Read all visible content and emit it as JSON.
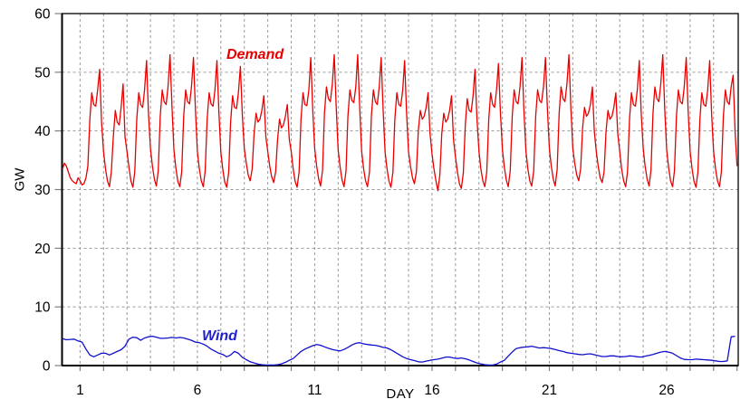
{
  "chart": {
    "y_axis_label": "GW",
    "x_axis_label": "DAY",
    "demand_label": "Demand",
    "wind_label": "Wind"
  },
  "colors": {
    "demand": "#e80000",
    "wind": "#1010cc",
    "grid": "#9a9a9a",
    "axis": "#000000",
    "tick": "#808080",
    "text": "#000000"
  },
  "chart_data": {
    "type": "line",
    "title": "",
    "xlabel": "DAY",
    "ylabel": "GW",
    "xlim": [
      0.232,
      29.05
    ],
    "ylim": [
      0,
      60
    ],
    "y_ticks": [
      0,
      10,
      20,
      30,
      40,
      50,
      60
    ],
    "x_tick_label_days": [
      1,
      6,
      11,
      16,
      21,
      26
    ],
    "x_gridline_days_start": 1,
    "x_gridline_days_end": 28,
    "grid": "dashed",
    "legend_position": "inline-labels",
    "series": [
      {
        "name": "Demand",
        "color": "#e80000",
        "x_start": 0.25,
        "x_step_days": 0.0833333,
        "values": [
          33.5,
          34.5,
          34,
          33,
          32,
          31.5,
          31.2,
          31,
          32,
          31.5,
          30.8,
          31,
          32,
          34,
          42,
          46.5,
          44.5,
          44.2,
          47,
          50.5,
          41.5,
          36.5,
          33.5,
          31.5,
          30.5,
          33,
          39,
          43.5,
          41.5,
          41,
          44,
          48,
          39,
          36.5,
          33.8,
          31.5,
          30.4,
          33,
          42,
          46.5,
          44.5,
          44,
          47,
          52,
          43,
          37,
          34,
          31.8,
          30.6,
          33.2,
          42.5,
          47,
          45,
          44.5,
          47.5,
          53,
          44,
          36.8,
          33.6,
          31.4,
          30.5,
          33,
          42.5,
          47,
          45,
          44.6,
          47.5,
          52.5,
          43.5,
          36.5,
          33.5,
          31.5,
          30.5,
          33.1,
          42,
          46.5,
          44.6,
          44.2,
          47,
          52,
          43,
          36.4,
          33.4,
          31.3,
          30.4,
          33,
          41.5,
          46,
          44,
          43.8,
          46.5,
          51,
          42.5,
          37,
          34.5,
          32.5,
          31.5,
          33.5,
          39.5,
          43,
          41.5,
          42,
          43.5,
          46,
          39,
          36.5,
          34,
          32.2,
          31.2,
          33,
          38.5,
          42,
          40.5,
          41,
          42.5,
          44.5,
          38.5,
          36.5,
          33.5,
          31.4,
          30.4,
          33,
          42,
          46.5,
          44.5,
          44.3,
          47,
          52.5,
          43.5,
          37,
          34,
          31.8,
          30.6,
          33.3,
          43,
          47.5,
          45.5,
          45,
          48,
          53,
          44,
          36.8,
          33.8,
          31.6,
          30.5,
          33.2,
          42.5,
          47,
          45.2,
          44.8,
          47.5,
          53,
          44,
          36.6,
          33.6,
          31.5,
          30.5,
          33,
          42.5,
          47,
          45,
          44.5,
          47.5,
          52.5,
          43.5,
          36.5,
          33.5,
          31.4,
          30.4,
          33,
          42,
          46.5,
          44.5,
          44.2,
          47,
          52,
          43,
          36.5,
          34,
          32,
          31,
          33,
          40,
          43.5,
          42,
          42.5,
          44,
          46.5,
          39.5,
          36,
          33.5,
          31.5,
          29.8,
          32.5,
          39.5,
          43,
          41.5,
          42,
          43.5,
          46,
          38.5,
          35.5,
          33,
          31,
          30.2,
          32.8,
          41,
          45.5,
          43.5,
          43.2,
          46,
          50.5,
          42,
          36.5,
          33.5,
          31.5,
          30.5,
          33,
          42,
          46.5,
          44.5,
          44,
          47,
          51.5,
          43,
          36.8,
          33.8,
          31.6,
          30.5,
          33.2,
          42.5,
          47,
          45,
          44.6,
          47.5,
          52.5,
          43.5,
          36.6,
          33.6,
          31.5,
          30.6,
          33.1,
          42.5,
          47,
          45.2,
          44.8,
          47.5,
          52.5,
          43.8,
          37,
          34,
          31.8,
          30.6,
          33.4,
          43,
          47.5,
          45.5,
          45,
          48,
          53,
          44,
          37,
          34.5,
          32.5,
          31.5,
          33.5,
          40.5,
          44,
          42.5,
          43,
          44.5,
          47.5,
          40,
          36.5,
          34,
          32,
          31.2,
          33,
          40,
          43.5,
          42,
          42.5,
          44,
          46.5,
          39.5,
          36.5,
          33.5,
          31.5,
          30.5,
          33,
          42,
          46.5,
          44.5,
          44.2,
          47,
          52,
          43,
          37,
          34,
          31.8,
          30.6,
          33.3,
          43,
          47.5,
          45.5,
          45,
          48,
          53,
          44,
          36.8,
          33.7,
          31.5,
          30.5,
          33.2,
          42.5,
          47,
          45,
          44.6,
          47.5,
          52.5,
          43.5,
          36.5,
          33.5,
          31.4,
          30.4,
          33,
          42,
          46.5,
          44.5,
          44.2,
          47,
          52,
          43,
          36.5,
          33.5,
          31.5,
          30.5,
          33,
          42.5,
          47,
          45,
          44.5,
          47.5,
          49.5,
          40,
          34
        ]
      },
      {
        "name": "Wind",
        "color": "#1010cc",
        "x_start": 0.25,
        "x_step_days": 0.1666667,
        "values": [
          4.6,
          4.4,
          4.45,
          4.5,
          4.2,
          4.0,
          2.8,
          1.8,
          1.5,
          1.8,
          2.1,
          2.1,
          1.8,
          2.1,
          2.4,
          2.7,
          3.3,
          4.5,
          4.85,
          4.75,
          4.3,
          4.7,
          4.9,
          5.0,
          4.85,
          4.65,
          4.65,
          4.7,
          4.8,
          4.7,
          4.8,
          4.7,
          4.5,
          4.3,
          4.0,
          3.9,
          3.65,
          3.3,
          2.8,
          2.45,
          2.1,
          1.9,
          1.5,
          1.8,
          2.4,
          2.1,
          1.4,
          1.0,
          0.65,
          0.45,
          0.25,
          0.15,
          0.1,
          0.1,
          0.1,
          0.15,
          0.3,
          0.55,
          0.9,
          1.2,
          1.8,
          2.4,
          2.8,
          3.1,
          3.4,
          3.6,
          3.45,
          3.2,
          2.95,
          2.75,
          2.6,
          2.5,
          2.75,
          3.1,
          3.5,
          3.8,
          3.9,
          3.7,
          3.6,
          3.5,
          3.45,
          3.3,
          3.1,
          3.0,
          2.7,
          2.3,
          1.9,
          1.5,
          1.2,
          1.0,
          0.85,
          0.65,
          0.6,
          0.75,
          0.9,
          1.0,
          1.1,
          1.25,
          1.45,
          1.45,
          1.3,
          1.2,
          1.3,
          1.15,
          0.95,
          0.7,
          0.45,
          0.3,
          0.15,
          0.1,
          0.1,
          0.25,
          0.6,
          0.9,
          1.6,
          2.3,
          2.9,
          3.05,
          3.15,
          3.2,
          3.3,
          3.15,
          3.0,
          3.05,
          3.0,
          2.9,
          2.75,
          2.55,
          2.4,
          2.2,
          2.1,
          2.0,
          1.9,
          1.85,
          1.95,
          2.0,
          1.85,
          1.7,
          1.55,
          1.55,
          1.65,
          1.65,
          1.55,
          1.5,
          1.55,
          1.65,
          1.6,
          1.5,
          1.45,
          1.6,
          1.75,
          1.9,
          2.1,
          2.3,
          2.4,
          2.3,
          2.1,
          1.7,
          1.3,
          1.05,
          1.0,
          1.0,
          1.1,
          1.05,
          1.0,
          0.95,
          0.9,
          0.8,
          0.7,
          0.7,
          0.8,
          4.9,
          5.0
        ]
      }
    ]
  }
}
